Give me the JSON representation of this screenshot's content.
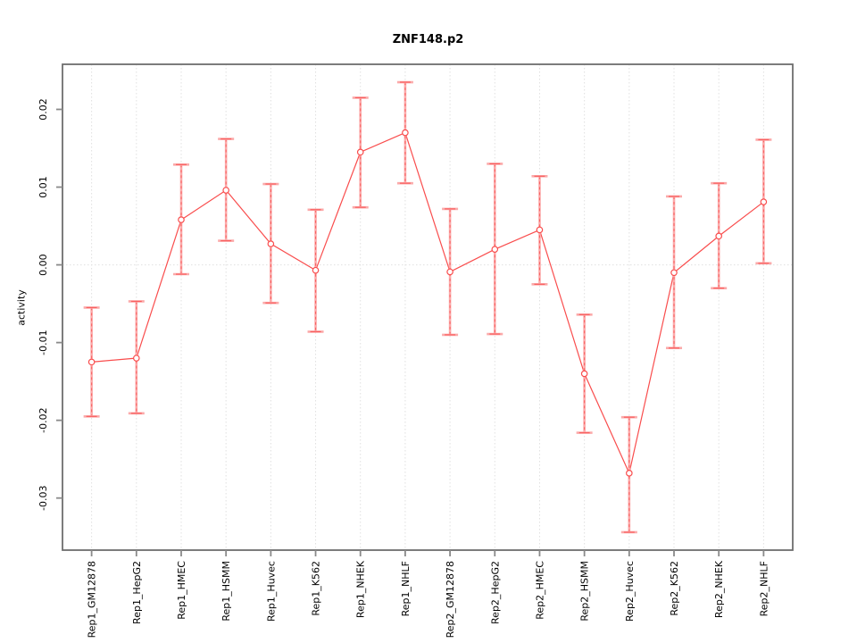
{
  "chart_data": {
    "type": "line",
    "title": "ZNF148.p2",
    "ylabel": "activity",
    "xlabel": "",
    "categories": [
      "Rep1_GM12878",
      "Rep1_HepG2",
      "Rep1_HMEC",
      "Rep1_HSMM",
      "Rep1_Huvec",
      "Rep1_K562",
      "Rep1_NHEK",
      "Rep1_NHLF",
      "Rep2_GM12878",
      "Rep2_HepG2",
      "Rep2_HMEC",
      "Rep2_HSMM",
      "Rep2_Huvec",
      "Rep2_K562",
      "Rep2_NHEK",
      "Rep2_NHLF"
    ],
    "series": [
      {
        "name": "activity",
        "values": [
          -0.0125,
          -0.012,
          0.0058,
          0.0096,
          0.0027,
          -0.0007,
          0.0145,
          0.017,
          -0.0009,
          0.002,
          0.0045,
          -0.014,
          -0.0268,
          -0.001,
          0.0037,
          0.0081
        ],
        "error_low": [
          -0.0195,
          -0.0191,
          -0.0012,
          0.0031,
          -0.0049,
          -0.0086,
          0.0074,
          0.0105,
          -0.009,
          -0.0089,
          -0.0025,
          -0.0216,
          -0.0344,
          -0.0107,
          -0.003,
          0.0002
        ],
        "error_high": [
          -0.0055,
          -0.0047,
          0.0129,
          0.0162,
          0.0104,
          0.0071,
          0.0215,
          0.0235,
          0.0072,
          0.013,
          0.0114,
          -0.0064,
          -0.0196,
          0.0088,
          0.0105,
          0.0161
        ]
      }
    ],
    "yticks": [
      0.02,
      0.01,
      0.0,
      -0.01,
      -0.02,
      -0.03
    ],
    "ytick_labels": [
      "0.02",
      "0.01",
      "0.00",
      "-0.01",
      "-0.02",
      "-0.03"
    ],
    "ylim": [
      -0.0367,
      0.0258
    ],
    "grid": "dotted vertical line at each category, dotted horizontal line at y=0",
    "legend_position": "none",
    "marker": "open-circle",
    "colors": {
      "line": "#f94d4d",
      "point": "#f94d4d",
      "error_bar_solid": "#fbaaaa",
      "error_bar_dash": "#f95f5f",
      "grid": "#e0e0e0",
      "axis_box": "#6e6e6e",
      "tick": "#8a8a8a",
      "text": "#000000"
    }
  }
}
